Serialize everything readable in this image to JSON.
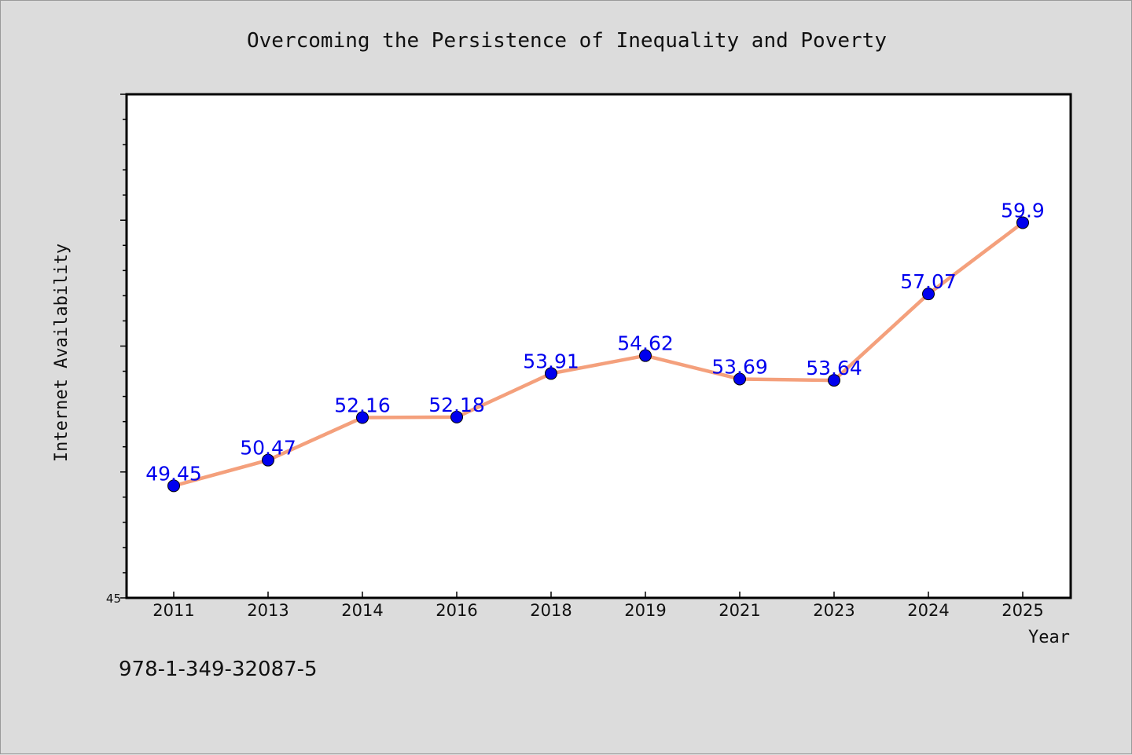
{
  "chart_data": {
    "type": "line",
    "title": "Overcoming the Persistence of Inequality and Poverty",
    "xlabel": "Year",
    "ylabel": "Internet Availability",
    "categories": [
      "2011",
      "2013",
      "2014",
      "2016",
      "2018",
      "2019",
      "2021",
      "2023",
      "2024",
      "2025"
    ],
    "series": [
      {
        "values": [
          49.45,
          50.47,
          52.16,
          52.18,
          53.91,
          54.62,
          53.69,
          53.64,
          57.07,
          59.9
        ],
        "data_labels": [
          "49.45",
          "50.47",
          "52.16",
          "52.18",
          "53.91",
          "54.62",
          "53.69",
          "53.64",
          "57.07",
          "59.9"
        ]
      }
    ],
    "ylim": [
      45,
      65
    ],
    "y_tick_labels": [
      "45"
    ],
    "grid": false,
    "line_color": "#f4a07c",
    "marker_color": "#0000ee",
    "label_color": "#0000ee",
    "plot_background": "#ffffff",
    "figure_background": "#dcdcdc"
  },
  "footer": {
    "isbn": "978-1-349-32087-5"
  }
}
